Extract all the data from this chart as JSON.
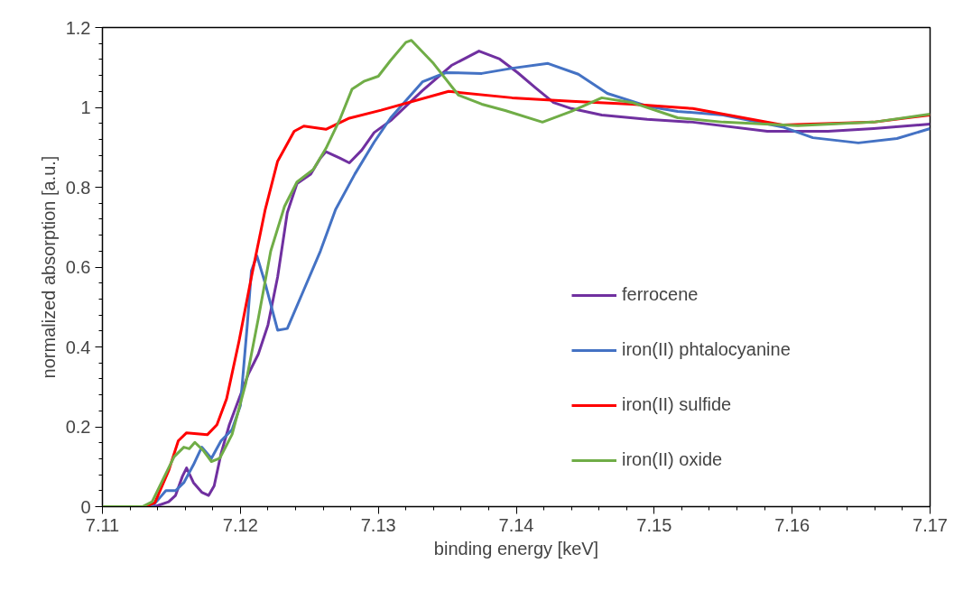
{
  "chart_data": {
    "type": "line",
    "xlabel": "binding energy [keV]",
    "ylabel": "normalized absorption [a.u.]",
    "xlim": [
      7.11,
      7.17
    ],
    "ylim": [
      0,
      1.2
    ],
    "xticks": [
      7.11,
      7.12,
      7.13,
      7.14,
      7.15,
      7.16,
      7.17
    ],
    "yticks": [
      0,
      0.2,
      0.4,
      0.6,
      0.8,
      1,
      1.2
    ],
    "grid": false,
    "legend": "right",
    "marker": "none",
    "line_style": "solid",
    "series": [
      {
        "name": "ferrocene",
        "color": "#7030a0",
        "x": [
          7.11,
          7.1138,
          7.1148,
          7.1153,
          7.1158,
          7.1161,
          7.1166,
          7.1172,
          7.1177,
          7.1181,
          7.1186,
          7.1192,
          7.1199,
          7.1206,
          7.1213,
          7.122,
          7.1227,
          7.1234,
          7.1241,
          7.1251,
          7.1258,
          7.1262,
          7.1272,
          7.1279,
          7.1288,
          7.1297,
          7.1309,
          7.1332,
          7.1353,
          7.1373,
          7.1388,
          7.1401,
          7.1414,
          7.1427,
          7.144,
          7.1462,
          7.1495,
          7.1528,
          7.1582,
          7.1626,
          7.1659,
          7.17
        ],
        "values": [
          0,
          0,
          0.012,
          0.028,
          0.076,
          0.097,
          0.06,
          0.036,
          0.028,
          0.052,
          0.133,
          0.205,
          0.27,
          0.334,
          0.382,
          0.455,
          0.575,
          0.736,
          0.809,
          0.833,
          0.873,
          0.889,
          0.873,
          0.861,
          0.893,
          0.937,
          0.967,
          1.042,
          1.105,
          1.141,
          1.121,
          1.087,
          1.049,
          1.012,
          0.997,
          0.981,
          0.97,
          0.963,
          0.94,
          0.94,
          0.947,
          0.958
        ]
      },
      {
        "name": "iron(II) phtalocyanine",
        "color": "#4472c4",
        "x": [
          7.11,
          7.1136,
          7.1142,
          7.1146,
          7.1153,
          7.1159,
          7.1166,
          7.1172,
          7.1179,
          7.1186,
          7.1194,
          7.12,
          7.1205,
          7.1208,
          7.1212,
          7.1218,
          7.1227,
          7.1234,
          7.1246,
          7.1258,
          7.1269,
          7.1283,
          7.1297,
          7.1309,
          7.1332,
          7.1349,
          7.1375,
          7.1397,
          7.1423,
          7.1445,
          7.1466,
          7.1495,
          7.1517,
          7.155,
          7.1593,
          7.1615,
          7.1648,
          7.1676,
          7.17
        ],
        "values": [
          0,
          0,
          0.024,
          0.04,
          0.04,
          0.06,
          0.105,
          0.149,
          0.121,
          0.165,
          0.193,
          0.253,
          0.455,
          0.591,
          0.628,
          0.559,
          0.442,
          0.446,
          0.543,
          0.64,
          0.744,
          0.833,
          0.913,
          0.974,
          1.064,
          1.087,
          1.085,
          1.098,
          1.11,
          1.083,
          1.035,
          1.003,
          0.99,
          0.981,
          0.951,
          0.924,
          0.911,
          0.922,
          0.947
        ]
      },
      {
        "name": "iron(II) sulfide",
        "color": "#ff0000",
        "x": [
          7.11,
          7.1131,
          7.1138,
          7.1148,
          7.1155,
          7.1161,
          7.1176,
          7.1183,
          7.119,
          7.1199,
          7.1208,
          7.1218,
          7.1227,
          7.1239,
          7.1246,
          7.1262,
          7.1279,
          7.1302,
          7.1351,
          7.1397,
          7.144,
          7.1484,
          7.1528,
          7.1593,
          7.1659,
          7.17
        ],
        "values": [
          0,
          0,
          0.01,
          0.09,
          0.165,
          0.185,
          0.18,
          0.205,
          0.27,
          0.414,
          0.575,
          0.744,
          0.865,
          0.94,
          0.953,
          0.945,
          0.973,
          0.993,
          1.04,
          1.024,
          1.015,
          1.008,
          0.997,
          0.956,
          0.963,
          0.981
        ]
      },
      {
        "name": "iron(II) oxide",
        "color": "#70ad47",
        "x": [
          7.11,
          7.1129,
          7.1136,
          7.1145,
          7.1152,
          7.1159,
          7.1163,
          7.1167,
          7.1173,
          7.1179,
          7.1185,
          7.1194,
          7.1204,
          7.1213,
          7.1222,
          7.1232,
          7.1241,
          7.1253,
          7.1262,
          7.1272,
          7.1281,
          7.129,
          7.13,
          7.1309,
          7.132,
          7.1324,
          7.134,
          7.1358,
          7.1375,
          7.1392,
          7.1419,
          7.144,
          7.1462,
          7.1484,
          7.1517,
          7.155,
          7.1604,
          7.1659,
          7.17
        ],
        "values": [
          0,
          0,
          0.012,
          0.076,
          0.125,
          0.149,
          0.145,
          0.161,
          0.141,
          0.113,
          0.121,
          0.181,
          0.31,
          0.471,
          0.64,
          0.752,
          0.813,
          0.845,
          0.897,
          0.969,
          1.046,
          1.066,
          1.078,
          1.118,
          1.163,
          1.168,
          1.11,
          1.031,
          1.008,
          0.992,
          0.963,
          0.99,
          1.024,
          1.012,
          0.974,
          0.963,
          0.954,
          0.963,
          0.983
        ]
      }
    ]
  }
}
